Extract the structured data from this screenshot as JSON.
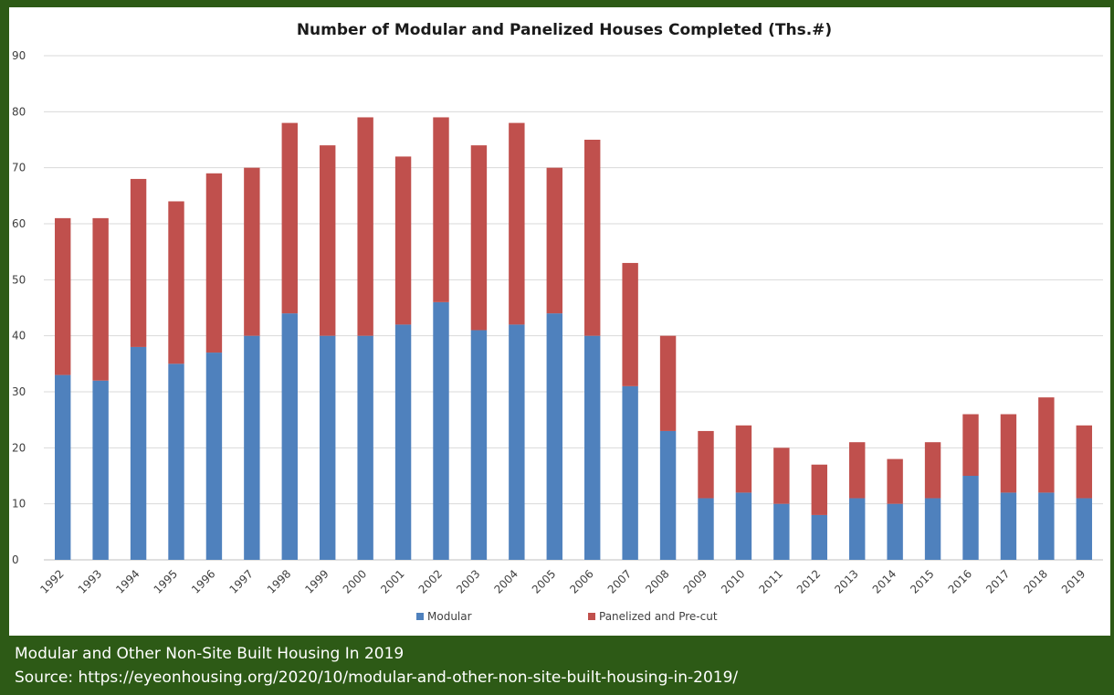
{
  "chart_data": {
    "type": "bar",
    "stacked": true,
    "title": "Number of Modular and Panelized Houses Completed (Ths.#)",
    "xlabel": "",
    "ylabel": "",
    "ylim": [
      0,
      90
    ],
    "yticks": [
      0,
      10,
      20,
      30,
      40,
      50,
      60,
      70,
      80,
      90
    ],
    "grid": true,
    "legend_position": "bottom",
    "categories": [
      "1992",
      "1993",
      "1994",
      "1995",
      "1996",
      "1997",
      "1998",
      "1999",
      "2000",
      "2001",
      "2002",
      "2003",
      "2004",
      "2005",
      "2006",
      "2007",
      "2008",
      "2009",
      "2010",
      "2011",
      "2012",
      "2013",
      "2014",
      "2015",
      "2016",
      "2017",
      "2018",
      "2019"
    ],
    "series": [
      {
        "name": "Modular",
        "color": "#4f81bd",
        "values": [
          33,
          32,
          38,
          35,
          37,
          40,
          44,
          40,
          40,
          42,
          46,
          41,
          42,
          44,
          40,
          31,
          23,
          11,
          12,
          10,
          8,
          11,
          10,
          11,
          15,
          12,
          12,
          11
        ]
      },
      {
        "name": "Panelized and Pre-cut",
        "color": "#c0504d",
        "values": [
          28,
          29,
          30,
          29,
          32,
          30,
          34,
          34,
          39,
          30,
          33,
          33,
          36,
          26,
          35,
          22,
          17,
          12,
          12,
          10,
          9,
          10,
          8,
          10,
          11,
          14,
          17,
          13
        ]
      }
    ]
  },
  "caption": {
    "line1": "Modular and Other Non-Site Built Housing In 2019",
    "line2": "Source: https://eyeonhousing.org/2020/10/modular-and-other-non-site-built-housing-in-2019/"
  },
  "colors": {
    "frame": "#2d5a16",
    "grid": "#d9d9d9",
    "axis_text": "#404040"
  }
}
